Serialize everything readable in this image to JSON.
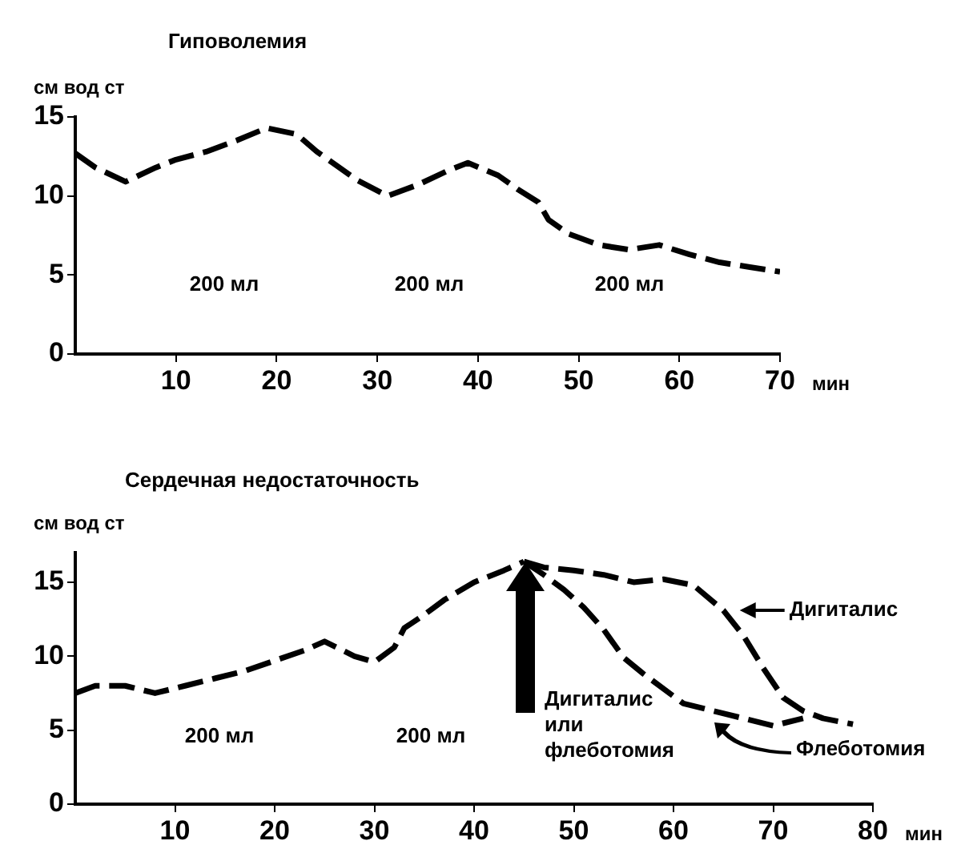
{
  "chart_data": [
    {
      "type": "line",
      "title": "Гиповолемия",
      "ylabel": "см вод ст",
      "xlabel": "мин",
      "xlim": [
        0,
        70
      ],
      "xticks": [
        10,
        20,
        30,
        40,
        50,
        60,
        70
      ],
      "ylim": [
        0,
        15
      ],
      "yticks": [
        0,
        5,
        10,
        15
      ],
      "grid": false,
      "legend": false,
      "marker": "none",
      "line_style": "dashed",
      "series": [
        {
          "color": "#000000",
          "x": [
            0,
            2,
            5,
            8,
            10,
            13,
            16,
            19,
            22,
            24,
            26,
            28,
            31,
            34,
            37,
            39,
            42,
            44,
            46,
            47,
            49,
            52,
            55,
            58,
            61,
            64,
            67,
            70
          ],
          "values": [
            12.7,
            11.8,
            10.9,
            11.8,
            12.3,
            12.8,
            13.5,
            14.3,
            13.9,
            12.8,
            11.9,
            11.0,
            10.0,
            10.7,
            11.6,
            12.1,
            11.3,
            10.4,
            9.6,
            8.5,
            7.6,
            6.9,
            6.6,
            6.9,
            6.3,
            5.8,
            5.5,
            5.2
          ]
        }
      ],
      "annotations": [
        "200 мл",
        "200 мл",
        "200 мл"
      ]
    },
    {
      "type": "line",
      "title": "Сердечная недостаточность",
      "ylabel": "см вод ст",
      "xlabel": "мин",
      "xlim": [
        0,
        80
      ],
      "xticks": [
        10,
        20,
        30,
        40,
        50,
        60,
        70,
        80
      ],
      "ylim": [
        0,
        17
      ],
      "yticks": [
        0,
        5,
        10,
        15
      ],
      "grid": false,
      "legend": false,
      "marker": "none",
      "line_style": "dashed",
      "series": [
        {
          "color": "#000000",
          "x": [
            0,
            2,
            5,
            8,
            11,
            14,
            17,
            20,
            23,
            25,
            28,
            30,
            32,
            33,
            35,
            37,
            40,
            43,
            45
          ],
          "values": [
            7.5,
            8.0,
            8.0,
            7.5,
            8.0,
            8.5,
            9.0,
            9.7,
            10.4,
            11.0,
            10.0,
            9.6,
            10.6,
            11.9,
            12.8,
            13.8,
            15.0,
            15.8,
            16.4
          ]
        },
        {
          "color": "#000000",
          "x": [
            45,
            47,
            50,
            53,
            56,
            59,
            62,
            65,
            67,
            69,
            71,
            73,
            75,
            78
          ],
          "values": [
            16.4,
            16.0,
            15.8,
            15.5,
            15.0,
            15.2,
            14.8,
            13.1,
            11.4,
            9.2,
            7.2,
            6.3,
            5.8,
            5.4
          ]
        },
        {
          "color": "#000000",
          "x": [
            45,
            47,
            49,
            51,
            53,
            55,
            57,
            61,
            64,
            67,
            70,
            73
          ],
          "values": [
            16.4,
            15.5,
            14.5,
            13.3,
            11.8,
            9.9,
            8.8,
            6.8,
            6.3,
            5.8,
            5.3,
            5.8
          ]
        }
      ],
      "annotations": [
        "200 мл",
        "200 мл",
        "Дигиталис\nили\nфлеботомия",
        {
          "text": "Дигиталис",
          "x": 66,
          "y": 13.1
        },
        "Флеботомия"
      ]
    }
  ]
}
